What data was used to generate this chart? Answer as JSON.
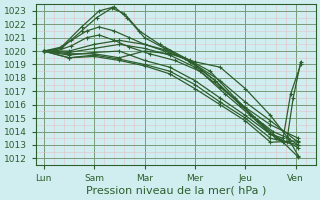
{
  "title": "",
  "xlabel": "Pression niveau de la mer( hPa )",
  "ylabel": "",
  "bg_color": "#d0eef0",
  "plot_bg_color": "#d0eef0",
  "line_color": "#2d5e2d",
  "ylim": [
    1011.5,
    1023.5
  ],
  "yticks": [
    1012,
    1013,
    1014,
    1015,
    1016,
    1017,
    1018,
    1019,
    1020,
    1021,
    1022,
    1023
  ],
  "xtick_labels": [
    "Lun",
    "Sam",
    "Mar",
    "Mer",
    "Jeu",
    "Ven"
  ],
  "xtick_positions": [
    0,
    1,
    2,
    3,
    4,
    5
  ],
  "xlim": [
    -0.15,
    5.4
  ],
  "xlabel_fontsize": 8,
  "tick_fontsize": 6.5,
  "figsize": [
    3.2,
    2.0
  ],
  "dpi": 100,
  "lines": [
    [
      0.0,
      1020.0,
      0.5,
      1019.8,
      1.0,
      1019.8,
      1.5,
      1019.5,
      2.0,
      1020.0,
      2.5,
      1019.8,
      3.0,
      1019.2,
      3.5,
      1018.8,
      4.0,
      1017.2,
      4.5,
      1015.2,
      4.85,
      1013.5,
      5.05,
      1013.0
    ],
    [
      0.0,
      1020.0,
      0.35,
      1020.2,
      0.75,
      1021.5,
      1.05,
      1022.5,
      1.35,
      1023.2,
      1.6,
      1022.8,
      1.9,
      1021.5,
      2.3,
      1020.5,
      2.8,
      1019.5,
      3.3,
      1018.5,
      3.8,
      1016.5,
      4.2,
      1015.0,
      4.55,
      1014.0,
      4.85,
      1013.5,
      5.05,
      1012.2
    ],
    [
      0.0,
      1020.0,
      0.35,
      1020.3,
      0.75,
      1021.8,
      1.1,
      1023.0,
      1.4,
      1023.3,
      1.65,
      1022.5,
      2.0,
      1021.0,
      2.4,
      1020.2,
      2.9,
      1019.2,
      3.4,
      1017.8,
      3.9,
      1016.0,
      4.35,
      1014.5,
      4.75,
      1013.2,
      5.05,
      1012.1
    ],
    [
      0.0,
      1020.0,
      0.5,
      1020.0,
      1.0,
      1020.5,
      1.5,
      1020.8,
      2.0,
      1020.5,
      2.5,
      1020.0,
      3.0,
      1019.0,
      3.5,
      1017.8,
      4.0,
      1016.2,
      4.5,
      1014.8,
      5.05,
      1013.2
    ],
    [
      0.0,
      1020.0,
      0.5,
      1019.9,
      1.0,
      1020.2,
      1.5,
      1020.5,
      2.0,
      1020.2,
      2.5,
      1019.7,
      3.0,
      1018.8,
      3.5,
      1017.3,
      4.0,
      1015.8,
      4.5,
      1014.5,
      5.05,
      1013.5
    ],
    [
      0.0,
      1020.0,
      0.5,
      1019.7,
      1.0,
      1019.9,
      1.5,
      1020.0,
      2.0,
      1019.3,
      2.5,
      1018.8,
      3.0,
      1017.8,
      3.5,
      1016.5,
      4.0,
      1015.2,
      4.5,
      1013.8,
      5.05,
      1012.8
    ],
    [
      0.0,
      1020.0,
      0.5,
      1019.5,
      1.0,
      1019.7,
      1.5,
      1019.4,
      2.0,
      1019.0,
      2.5,
      1018.5,
      3.0,
      1017.5,
      3.5,
      1016.2,
      4.0,
      1015.0,
      4.5,
      1013.5,
      5.05,
      1013.0
    ],
    [
      0.0,
      1020.0,
      0.5,
      1019.5,
      1.0,
      1019.6,
      1.5,
      1019.3,
      2.0,
      1018.9,
      2.5,
      1018.3,
      3.0,
      1017.2,
      3.5,
      1016.0,
      4.0,
      1014.8,
      4.5,
      1013.2,
      5.05,
      1013.3
    ],
    [
      0.0,
      1020.0,
      0.25,
      1020.1,
      0.55,
      1020.8,
      0.85,
      1021.5,
      1.1,
      1021.8,
      1.4,
      1021.5,
      1.7,
      1021.0,
      2.0,
      1020.5,
      2.4,
      1020.0,
      2.9,
      1019.3,
      3.4,
      1017.8,
      3.9,
      1016.0,
      4.25,
      1014.8,
      4.6,
      1013.5,
      4.82,
      1013.2,
      4.95,
      1016.5,
      5.1,
      1019.2
    ],
    [
      0.0,
      1020.0,
      0.25,
      1020.0,
      0.55,
      1020.4,
      0.85,
      1021.0,
      1.1,
      1021.2,
      1.4,
      1020.8,
      1.7,
      1020.3,
      2.1,
      1019.8,
      2.6,
      1019.3,
      3.1,
      1018.5,
      3.6,
      1016.8,
      4.1,
      1015.2,
      4.5,
      1013.8,
      4.75,
      1013.5,
      4.9,
      1016.8,
      5.1,
      1019.0
    ]
  ]
}
